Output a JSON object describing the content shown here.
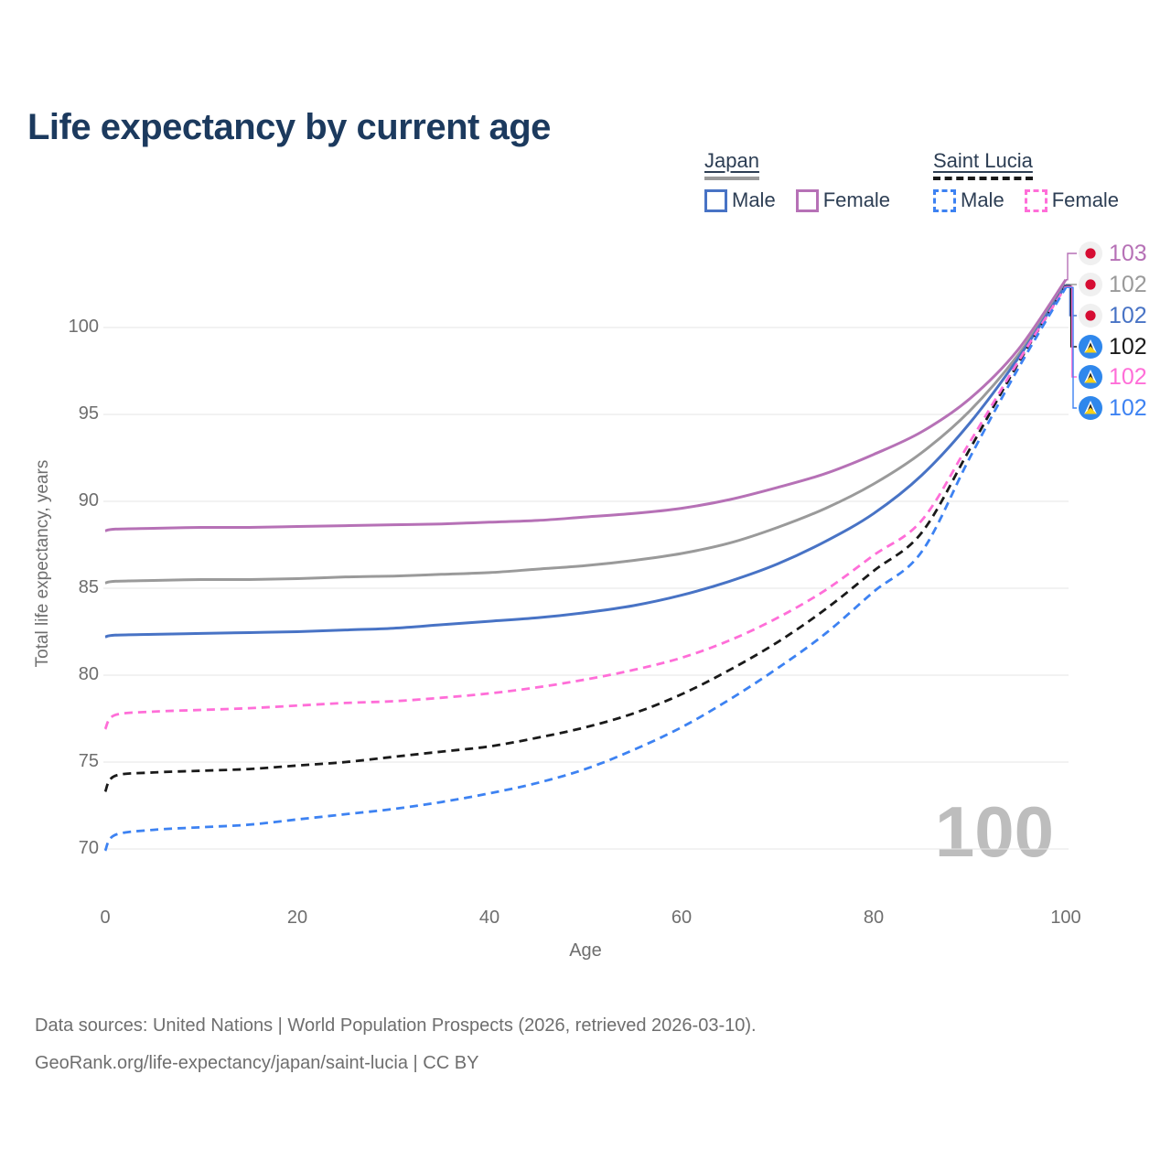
{
  "title": "Life expectancy by current age",
  "legend": {
    "groups": [
      {
        "country": "Japan",
        "line_style": "solid",
        "line_color": "#9a9a9a",
        "items": [
          {
            "label": "Male",
            "color": "#4873c5",
            "style": "solid"
          },
          {
            "label": "Female",
            "color": "#b671b6",
            "style": "solid"
          }
        ]
      },
      {
        "country": "Saint Lucia",
        "line_style": "dashed",
        "line_color": "#1a1a1a",
        "items": [
          {
            "label": "Male",
            "color": "#3d82f2",
            "style": "dashed"
          },
          {
            "label": "Female",
            "color": "#ff6ed8",
            "style": "dashed"
          }
        ]
      }
    ]
  },
  "chart_data": {
    "type": "line",
    "title": "Life expectancy by current age",
    "xlabel": "Age",
    "ylabel": "Total life expectancy, years",
    "x_ticks": [
      0,
      20,
      40,
      60,
      80,
      100
    ],
    "y_ticks": [
      70,
      75,
      80,
      85,
      90,
      95,
      100
    ],
    "xlim": [
      0,
      100
    ],
    "ylim": [
      67,
      103.5
    ],
    "grid": "horizontal",
    "watermark": "100",
    "x": [
      0,
      1,
      5,
      10,
      15,
      20,
      25,
      30,
      35,
      40,
      45,
      50,
      55,
      60,
      65,
      70,
      75,
      80,
      85,
      90,
      95,
      100
    ],
    "series": [
      {
        "id": "japan-female",
        "name": "Japan Female",
        "country": "Japan",
        "sex": "Female",
        "color": "#b671b6",
        "dash": "solid",
        "end_label": "103",
        "values": [
          88.3,
          88.4,
          88.45,
          88.5,
          88.5,
          88.55,
          88.6,
          88.65,
          88.7,
          88.8,
          88.9,
          89.1,
          89.3,
          89.6,
          90.1,
          90.8,
          91.6,
          92.7,
          94.0,
          95.9,
          98.7,
          102.75
        ]
      },
      {
        "id": "japan-all",
        "name": "Japan (both sexes)",
        "country": "Japan",
        "sex": "All",
        "color": "#9a9a9a",
        "dash": "solid",
        "end_label": "102",
        "values": [
          85.3,
          85.4,
          85.45,
          85.5,
          85.5,
          85.55,
          85.65,
          85.7,
          85.8,
          85.9,
          86.1,
          86.3,
          86.6,
          87.0,
          87.6,
          88.5,
          89.6,
          91.0,
          92.8,
          95.2,
          98.4,
          102.48
        ]
      },
      {
        "id": "japan-male",
        "name": "Japan Male",
        "country": "Japan",
        "sex": "Male",
        "color": "#4873c5",
        "dash": "solid",
        "end_label": "102",
        "values": [
          82.2,
          82.3,
          82.35,
          82.4,
          82.45,
          82.5,
          82.6,
          82.7,
          82.9,
          83.1,
          83.3,
          83.6,
          84.0,
          84.6,
          85.4,
          86.4,
          87.7,
          89.3,
          91.5,
          94.5,
          98.2,
          102.44
        ]
      },
      {
        "id": "saint-lucia-all",
        "name": "Saint Lucia (both sexes)",
        "country": "Saint Lucia",
        "sex": "All",
        "color": "#1a1a1a",
        "dash": "dashed",
        "end_label": "102",
        "values": [
          73.3,
          74.2,
          74.4,
          74.5,
          74.6,
          74.8,
          75.0,
          75.3,
          75.6,
          75.9,
          76.4,
          77.0,
          77.8,
          78.9,
          80.3,
          81.9,
          83.8,
          86.0,
          88.2,
          93.0,
          97.9,
          102.4
        ]
      },
      {
        "id": "saint-lucia-female",
        "name": "Saint Lucia Female",
        "country": "Saint Lucia",
        "sex": "Female",
        "color": "#ff6ed8",
        "dash": "dashed",
        "end_label": "102",
        "values": [
          76.9,
          77.7,
          77.9,
          78.0,
          78.1,
          78.25,
          78.4,
          78.5,
          78.7,
          78.95,
          79.3,
          79.75,
          80.3,
          81.0,
          82.0,
          83.3,
          84.9,
          86.9,
          88.9,
          93.4,
          98.0,
          102.36
        ]
      },
      {
        "id": "saint-lucia-male",
        "name": "Saint Lucia Male",
        "country": "Saint Lucia",
        "sex": "Male",
        "color": "#3d82f2",
        "dash": "dashed",
        "end_label": "102",
        "values": [
          69.9,
          70.8,
          71.1,
          71.25,
          71.4,
          71.7,
          72.0,
          72.3,
          72.7,
          73.2,
          73.8,
          74.6,
          75.7,
          77.0,
          78.6,
          80.4,
          82.4,
          84.8,
          87.1,
          92.5,
          97.6,
          102.3
        ]
      }
    ]
  },
  "end_labels": [
    {
      "value": "103",
      "flag": "japan",
      "series": "japan-female"
    },
    {
      "value": "102",
      "flag": "japan",
      "series": "japan-all"
    },
    {
      "value": "102",
      "flag": "japan",
      "series": "japan-male"
    },
    {
      "value": "102",
      "flag": "saint-lucia",
      "series": "saint-lucia-all"
    },
    {
      "value": "102",
      "flag": "saint-lucia",
      "series": "saint-lucia-female"
    },
    {
      "value": "102",
      "flag": "saint-lucia",
      "series": "saint-lucia-male"
    }
  ],
  "flag_colors": {
    "japan": {
      "bg": "#f0f0f0",
      "dot": "#d60d33"
    },
    "saint_lucia": {
      "bg": "#2f87ec",
      "tri_white": "#ffffff",
      "tri_black": "#222222",
      "tri_yellow": "#f7d117"
    }
  },
  "footer": {
    "line1": "Data sources: United Nations | World Population Prospects (2026, retrieved 2026-03-10).",
    "line2": "GeoRank.org/life-expectancy/japan/saint-lucia | CC BY"
  }
}
